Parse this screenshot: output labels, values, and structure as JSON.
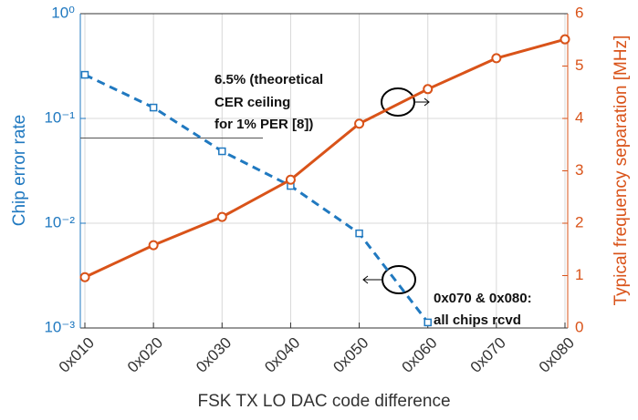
{
  "chart_data": {
    "type": "line",
    "x_label": "FSK TX LO DAC code difference",
    "y_label": "Chip error rate",
    "y2_label": "Typical frequency separation [MHz]",
    "categories": [
      "0x010",
      "0x020",
      "0x030",
      "0x040",
      "0x050",
      "0x060",
      "0x070",
      "0x080"
    ],
    "series": [
      {
        "name": "Chip error rate",
        "color": "#2079c0",
        "axis": "y",
        "values": [
          0.261,
          0.127,
          0.0486,
          0.0227,
          0.008,
          0.00113,
          null,
          null
        ]
      },
      {
        "name": "Typical frequency separation",
        "color": "#d95319",
        "axis": "y2",
        "values": [
          0.97,
          1.58,
          2.12,
          2.83,
          3.9,
          4.56,
          5.15,
          5.51
        ]
      }
    ],
    "ylim": [
      0.001,
      1
    ],
    "yscale": "log",
    "yticks": [
      {
        "value": 1,
        "label": "10⁰"
      },
      {
        "value": 0.1,
        "label": "10⁻¹"
      },
      {
        "value": 0.01,
        "label": "10⁻²"
      },
      {
        "value": 0.001,
        "label": "10⁻³"
      }
    ],
    "y2lim": [
      0,
      6
    ],
    "y2ticks": [
      0,
      1,
      2,
      3,
      4,
      5,
      6
    ],
    "grid": true,
    "threshold": 0.065,
    "annotations": [
      [
        "6.5% (theoretical",
        "CER ceiling",
        "for 1% PER [8])"
      ],
      [
        "0x070 & 0x080:",
        "all chips rcvd"
      ]
    ]
  }
}
